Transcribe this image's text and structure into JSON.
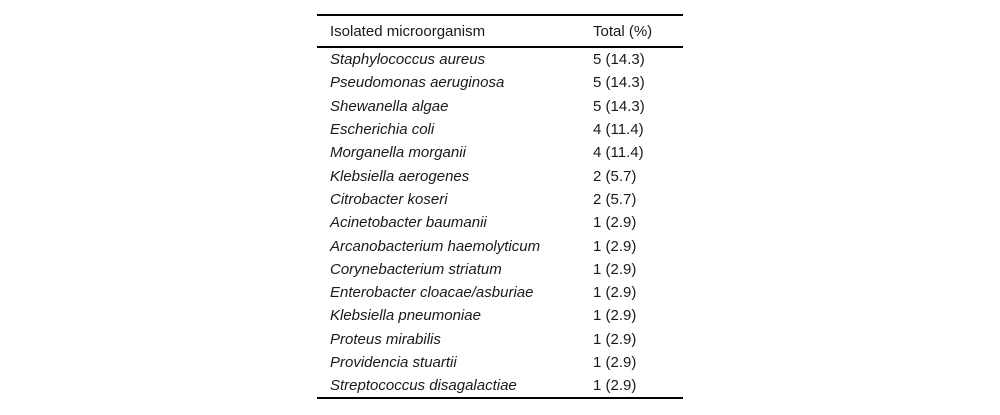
{
  "table": {
    "columns": [
      "Isolated microorganism",
      "Total (%)"
    ],
    "rows": [
      {
        "name": "Staphylococcus aureus",
        "total": "5 (14.3)"
      },
      {
        "name": "Pseudomonas aeruginosa",
        "total": "5 (14.3)"
      },
      {
        "name": "Shewanella algae",
        "total": "5 (14.3)"
      },
      {
        "name": "Escherichia coli",
        "total": "4 (11.4)"
      },
      {
        "name": "Morganella morganii",
        "total": "4 (11.4)"
      },
      {
        "name": "Klebsiella aerogenes",
        "total": "2 (5.7)"
      },
      {
        "name": "Citrobacter koseri",
        "total": "2 (5.7)"
      },
      {
        "name": "Acinetobacter baumanii",
        "total": "1 (2.9)"
      },
      {
        "name": "Arcanobacterium haemolyticum",
        "total": "1 (2.9)"
      },
      {
        "name": "Corynebacterium striatum",
        "total": "1 (2.9)"
      },
      {
        "name": "Enterobacter cloacae/asburiae",
        "total": "1 (2.9)"
      },
      {
        "name": "Klebsiella pneumoniae",
        "total": "1 (2.9)"
      },
      {
        "name": "Proteus mirabilis",
        "total": "1 (2.9)"
      },
      {
        "name": "Providencia stuartii",
        "total": "1 (2.9)"
      },
      {
        "name": "Streptococcus disagalactiae",
        "total": "1 (2.9)"
      }
    ],
    "colors": {
      "text": "#1a1a1a",
      "rule": "#000000",
      "background": "#ffffff"
    }
  },
  "chart_data": {
    "type": "table",
    "title": "",
    "columns": [
      "Isolated microorganism",
      "Total (%)"
    ],
    "categories": [
      "Staphylococcus aureus",
      "Pseudomonas aeruginosa",
      "Shewanella algae",
      "Escherichia coli",
      "Morganella morganii",
      "Klebsiella aerogenes",
      "Citrobacter koseri",
      "Acinetobacter baumanii",
      "Arcanobacterium haemolyticum",
      "Corynebacterium striatum",
      "Enterobacter cloacae/asburiae",
      "Klebsiella pneumoniae",
      "Proteus mirabilis",
      "Providencia stuartii",
      "Streptococcus disagalactiae"
    ],
    "counts": [
      5,
      5,
      5,
      4,
      4,
      2,
      2,
      1,
      1,
      1,
      1,
      1,
      1,
      1,
      1
    ],
    "percentages": [
      14.3,
      14.3,
      14.3,
      11.4,
      11.4,
      5.7,
      5.7,
      2.9,
      2.9,
      2.9,
      2.9,
      2.9,
      2.9,
      2.9,
      2.9
    ]
  }
}
